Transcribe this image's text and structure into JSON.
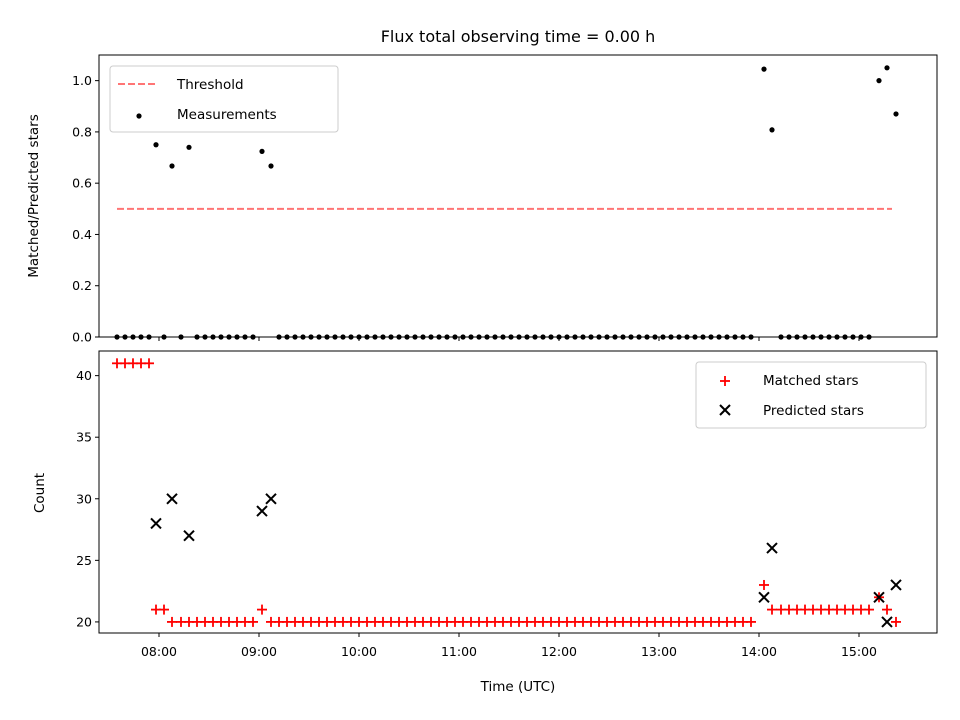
{
  "chart_data": [
    {
      "type": "scatter",
      "title": "Flux total observing time = 0.00 h",
      "xlabel": "",
      "ylabel": "Matched/Predicted stars",
      "xlim": [
        7.4,
        15.78
      ],
      "ylim": [
        0,
        1.1
      ],
      "yticks": [
        0.0,
        0.2,
        0.4,
        0.6,
        0.8,
        1.0
      ],
      "ytick_labels": [
        "0.0",
        "0.2",
        "0.4",
        "0.6",
        "0.8",
        "1.0"
      ],
      "grid": false,
      "legend_position": "top-left",
      "threshold": {
        "name": "Threshold",
        "y": 0.5,
        "x_range": [
          7.58,
          15.33
        ],
        "color": "#ff7575",
        "style": "dashed"
      },
      "series": [
        {
          "name": "Measurements",
          "marker": "dot",
          "color": "#000000",
          "x": [
            7.58,
            7.66,
            7.74,
            7.82,
            7.9,
            7.97,
            8.05,
            8.13,
            8.22,
            8.3,
            8.38,
            8.46,
            8.54,
            8.62,
            8.7,
            8.78,
            8.86,
            8.94,
            9.03,
            9.12,
            9.2,
            9.28,
            9.36,
            9.44,
            9.52,
            9.6,
            9.68,
            9.76,
            9.84,
            9.92,
            10.0,
            10.08,
            10.16,
            10.24,
            10.32,
            10.4,
            10.48,
            10.56,
            10.64,
            10.72,
            10.8,
            10.88,
            10.96,
            11.04,
            11.12,
            11.2,
            11.28,
            11.36,
            11.44,
            11.52,
            11.6,
            11.68,
            11.76,
            11.84,
            11.92,
            12.0,
            12.08,
            12.16,
            12.24,
            12.32,
            12.4,
            12.48,
            12.56,
            12.64,
            12.72,
            12.8,
            12.88,
            12.96,
            13.04,
            13.12,
            13.2,
            13.28,
            13.36,
            13.44,
            13.52,
            13.6,
            13.68,
            13.76,
            13.84,
            13.92,
            14.05,
            14.13,
            14.22,
            14.3,
            14.38,
            14.46,
            14.54,
            14.62,
            14.7,
            14.78,
            14.86,
            14.94,
            15.02,
            15.1,
            15.2,
            15.28,
            15.37
          ],
          "y": [
            0,
            0,
            0,
            0,
            0,
            0.75,
            0,
            0.667,
            0,
            0.74,
            0,
            0,
            0,
            0,
            0,
            0,
            0,
            0,
            0.724,
            0.667,
            0,
            0,
            0,
            0,
            0,
            0,
            0,
            0,
            0,
            0,
            0,
            0,
            0,
            0,
            0,
            0,
            0,
            0,
            0,
            0,
            0,
            0,
            0,
            0,
            0,
            0,
            0,
            0,
            0,
            0,
            0,
            0,
            0,
            0,
            0,
            0,
            0,
            0,
            0,
            0,
            0,
            0,
            0,
            0,
            0,
            0,
            0,
            0,
            0,
            0,
            0,
            0,
            0,
            0,
            0,
            0,
            0,
            0,
            0,
            0,
            1.045,
            0.808,
            0,
            0,
            0,
            0,
            0,
            0,
            0,
            0,
            0,
            0,
            0,
            0,
            1.0,
            1.05,
            0.87
          ]
        }
      ]
    },
    {
      "type": "scatter",
      "title": "",
      "xlabel": "Time (UTC)",
      "ylabel": "Count",
      "xlim": [
        7.4,
        15.78
      ],
      "ylim": [
        19.1,
        42.0
      ],
      "yticks": [
        20,
        25,
        30,
        35,
        40
      ],
      "ytick_labels": [
        "20",
        "25",
        "30",
        "35",
        "40"
      ],
      "xticks": [
        8,
        9,
        10,
        11,
        12,
        13,
        14,
        15
      ],
      "xtick_labels": [
        "08:00",
        "09:00",
        "10:00",
        "11:00",
        "12:00",
        "13:00",
        "14:00",
        "15:00"
      ],
      "grid": false,
      "legend_position": "top-right",
      "series": [
        {
          "name": "Matched stars",
          "marker": "plus",
          "color": "#ff0000",
          "x": [
            7.58,
            7.66,
            7.74,
            7.82,
            7.9,
            7.97,
            8.05,
            8.13,
            8.22,
            8.3,
            8.38,
            8.46,
            8.54,
            8.62,
            8.7,
            8.78,
            8.86,
            8.94,
            9.03,
            9.12,
            9.2,
            9.28,
            9.36,
            9.44,
            9.52,
            9.6,
            9.68,
            9.76,
            9.84,
            9.92,
            10.0,
            10.08,
            10.16,
            10.24,
            10.32,
            10.4,
            10.48,
            10.56,
            10.64,
            10.72,
            10.8,
            10.88,
            10.96,
            11.04,
            11.12,
            11.2,
            11.28,
            11.36,
            11.44,
            11.52,
            11.6,
            11.68,
            11.76,
            11.84,
            11.92,
            12.0,
            12.08,
            12.16,
            12.24,
            12.32,
            12.4,
            12.48,
            12.56,
            12.64,
            12.72,
            12.8,
            12.88,
            12.96,
            13.04,
            13.12,
            13.2,
            13.28,
            13.36,
            13.44,
            13.52,
            13.6,
            13.68,
            13.76,
            13.84,
            13.92,
            14.05,
            14.13,
            14.22,
            14.3,
            14.38,
            14.46,
            14.54,
            14.62,
            14.7,
            14.78,
            14.86,
            14.94,
            15.02,
            15.1,
            15.2,
            15.28,
            15.37
          ],
          "y": [
            41,
            41,
            41,
            41,
            41,
            21,
            21,
            20,
            20,
            20,
            20,
            20,
            20,
            20,
            20,
            20,
            20,
            20,
            21,
            20,
            20,
            20,
            20,
            20,
            20,
            20,
            20,
            20,
            20,
            20,
            20,
            20,
            20,
            20,
            20,
            20,
            20,
            20,
            20,
            20,
            20,
            20,
            20,
            20,
            20,
            20,
            20,
            20,
            20,
            20,
            20,
            20,
            20,
            20,
            20,
            20,
            20,
            20,
            20,
            20,
            20,
            20,
            20,
            20,
            20,
            20,
            20,
            20,
            20,
            20,
            20,
            20,
            20,
            20,
            20,
            20,
            20,
            20,
            20,
            20,
            23,
            21,
            21,
            21,
            21,
            21,
            21,
            21,
            21,
            21,
            21,
            21,
            21,
            21,
            22,
            21,
            20
          ]
        },
        {
          "name": "Predicted stars",
          "marker": "x",
          "color": "#000000",
          "x": [
            7.97,
            8.13,
            8.3,
            9.03,
            9.12,
            14.05,
            14.13,
            15.2,
            15.28,
            15.37
          ],
          "y": [
            28,
            30,
            27,
            29,
            30,
            22,
            26,
            22,
            20,
            23
          ]
        }
      ]
    }
  ]
}
